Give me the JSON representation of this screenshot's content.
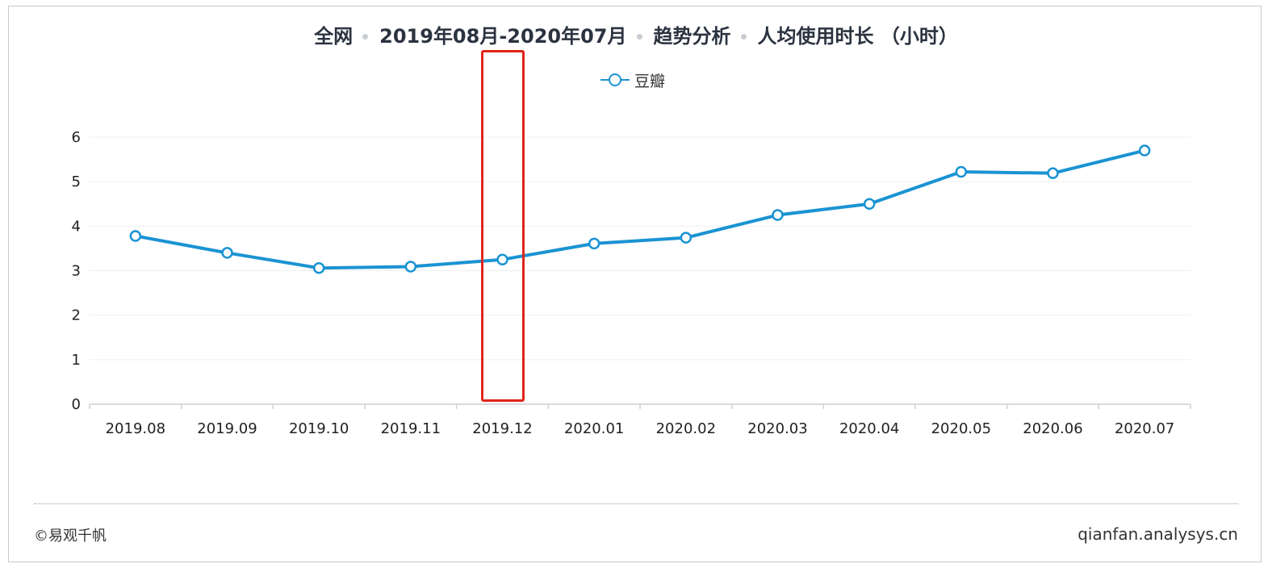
{
  "title": {
    "parts": [
      "全网",
      "2019年08月-2020年07月",
      "趋势分析",
      "人均使用时长 （小时）"
    ]
  },
  "chart_data": {
    "type": "line",
    "categories": [
      "2019.08",
      "2019.09",
      "2019.10",
      "2019.11",
      "2019.12",
      "2020.01",
      "2020.02",
      "2020.03",
      "2020.04",
      "2020.05",
      "2020.06",
      "2020.07"
    ],
    "series": [
      {
        "name": "豆瓣",
        "values": [
          3.78,
          3.4,
          3.06,
          3.09,
          3.25,
          3.61,
          3.74,
          4.25,
          4.5,
          5.22,
          5.19,
          5.7
        ]
      }
    ],
    "yticks": [
      0,
      1,
      2,
      3,
      4,
      5,
      6
    ],
    "ylim": [
      0,
      6
    ],
    "grid": true,
    "legend_position": "top-center",
    "line_color": "#1a93d3",
    "highlight_category": "2019.12",
    "highlight_color": "#e0251b"
  },
  "footer": {
    "copyright": "©易观千帆",
    "site": "qianfan.analysys.cn"
  }
}
